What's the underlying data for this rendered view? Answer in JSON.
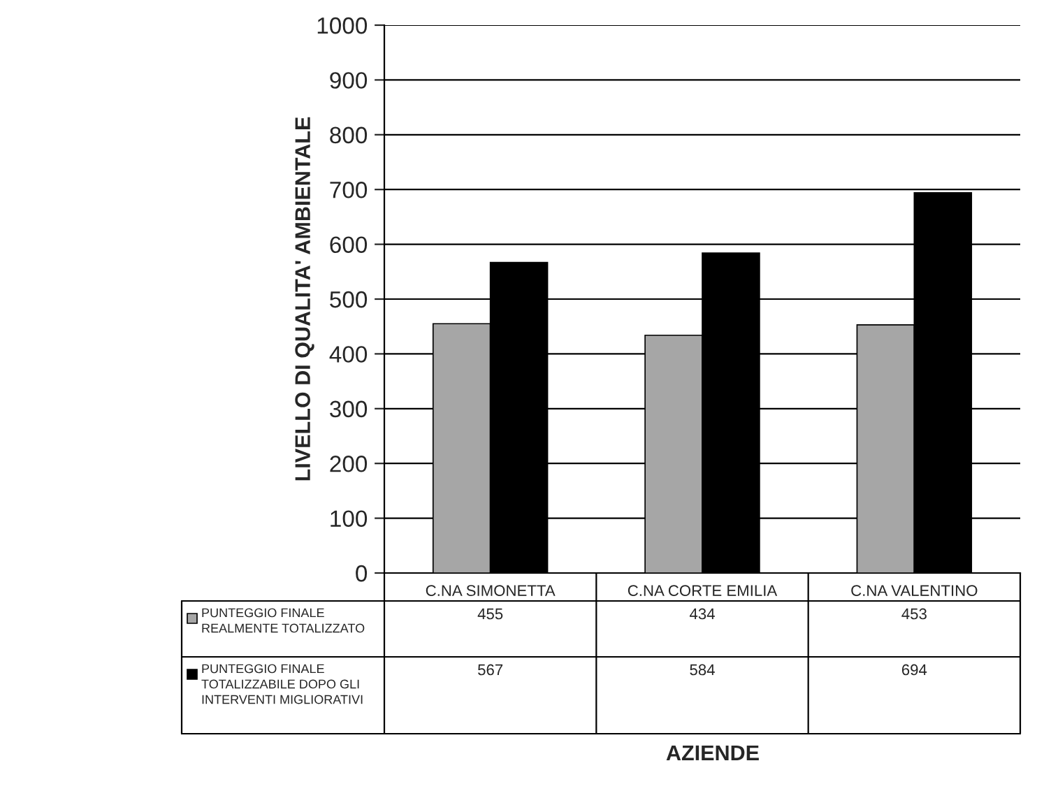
{
  "chart_data": {
    "type": "bar",
    "ylabel": "LIVELLO DI QUALITA' AMBIENTALE",
    "annotations": [
      "AZIENDE"
    ],
    "categories": [
      "C.NA SIMONETTA",
      "C.NA CORTE EMILIA",
      "C.NA VALENTINO"
    ],
    "series": [
      {
        "name": "PUNTEGGIO FINALE REALMENTE TOTALIZZATO",
        "color": "#a6a6a6",
        "values": [
          455,
          434,
          453
        ]
      },
      {
        "name": "PUNTEGGIO FINALE TOTALIZZABILE DOPO GLI INTERVENTI MIGLIORATIVI",
        "color": "#000000",
        "values": [
          567,
          584,
          694
        ]
      }
    ],
    "ylim": [
      0,
      1000
    ],
    "yticks": [
      0,
      100,
      200,
      300,
      400,
      500,
      600,
      700,
      800,
      900,
      1000
    ],
    "grid": "y",
    "legend": "bottom left",
    "data_labels": true
  }
}
